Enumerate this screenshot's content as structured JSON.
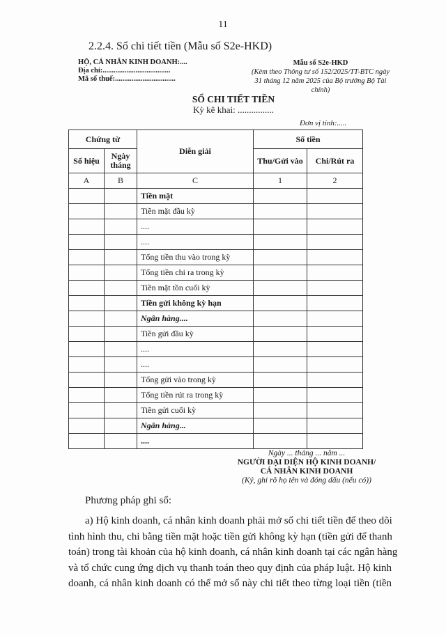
{
  "page_number": "11",
  "section_heading": "2.2.4. Sổ chi tiết tiền (Mẫu số S2e-HKD)",
  "header_left": [
    "HỘ, CÁ NHÂN KINH DOANH:....",
    "Địa chỉ:.....................................",
    "Mã số thuế:................................."
  ],
  "header_right": {
    "form": "Mẫu số S2e-HKD",
    "note": "(Kèm theo Thông tư số 152/2025/TT-BTC ngày 31 tháng 12 năm 2025 của Bộ trưởng Bộ Tài chính)"
  },
  "title": "SỔ CHI TIẾT TIỀN",
  "period": "Kỳ kê khai: ................",
  "unit": "Đơn vị tính:.....",
  "table": {
    "group_voucher": "Chứng từ",
    "col_number": "Số hiệu",
    "col_date": "Ngày tháng",
    "col_desc": "Diễn giải",
    "group_amount": "Số tiền",
    "col_in": "Thu/Gửi vào",
    "col_out": "Chi/Rút ra",
    "codes": [
      "A",
      "B",
      "C",
      "1",
      "2"
    ],
    "rows": [
      {
        "desc": "Tiền mặt",
        "style": "b"
      },
      {
        "desc": "Tiền mặt đầu kỳ",
        "style": ""
      },
      {
        "desc": "....",
        "style": ""
      },
      {
        "desc": "....",
        "style": ""
      },
      {
        "desc": "Tổng tiền thu vào trong kỳ",
        "style": ""
      },
      {
        "desc": "Tổng tiền chi ra trong kỳ",
        "style": ""
      },
      {
        "desc": "Tiền mặt tồn cuối kỳ",
        "style": ""
      },
      {
        "desc": "Tiền gửi không kỳ hạn",
        "style": "b"
      },
      {
        "desc": "Ngân hàng....",
        "style": "b i"
      },
      {
        "desc": "Tiền gửi đầu kỳ",
        "style": ""
      },
      {
        "desc": "....",
        "style": ""
      },
      {
        "desc": "....",
        "style": ""
      },
      {
        "desc": "Tổng gửi vào trong kỳ",
        "style": ""
      },
      {
        "desc": "Tổng tiền rút ra trong kỳ",
        "style": ""
      },
      {
        "desc": "Tiền gửi cuối kỳ",
        "style": ""
      },
      {
        "desc": "Ngân hàng...",
        "style": "b i"
      },
      {
        "desc": "....",
        "style": "b"
      }
    ]
  },
  "signature": {
    "date": "Ngày ... tháng ... năm ...",
    "role_line1": "NGƯỜI ĐẠI DIỆN HỘ KINH DOANH/",
    "role_line2": "CÁ NHÂN KINH DOANH",
    "instruction": "(Ký, ghi rõ họ tên và đóng dấu (nếu có))"
  },
  "method_heading": "Phương pháp ghi sổ:",
  "paragraph_lines": [
    "a) Hộ kinh doanh, cá nhân kinh doanh phải mở sổ chi tiết tiền để theo dõi",
    "tình hình thu, chi bằng tiền mặt hoặc tiền gửi không kỳ hạn (tiền gửi để thanh",
    "toán) trong tài khoản của hộ kinh doanh, cá nhân kinh doanh tại các ngân hàng",
    "và tổ chức cung ứng dịch vụ thanh toán theo quy định của pháp luật. Hộ kinh",
    "doanh, cá nhân kinh doanh có thể mở sổ này chi tiết theo từng loại tiền (tiền"
  ]
}
